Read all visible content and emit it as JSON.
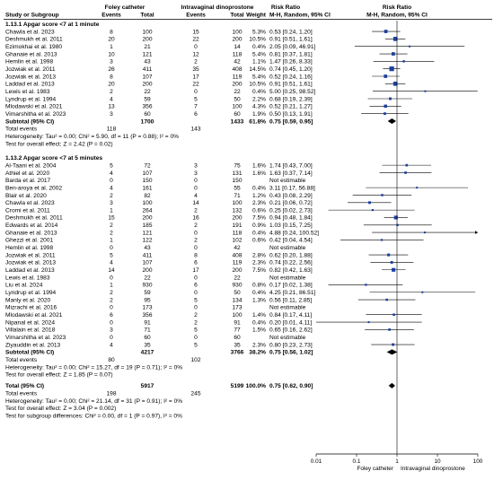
{
  "header": {
    "study": "Study or Subgroup",
    "group1": "Foley catheter",
    "group2": "Intravaginal dinoprostone",
    "events1": "Events",
    "total1": "Total",
    "events2": "Events",
    "total2": "Total",
    "weight": "Weight",
    "rr_title": "Risk Ratio",
    "rr_method": "M-H, Random, 95% CI",
    "plot_title": "Risk Ratio",
    "plot_method": "M-H, Random, 95% CI"
  },
  "colors": {
    "ci_marker": "#1a3fa0",
    "diamond": "#000000",
    "line": "#000000"
  },
  "chart_data": {
    "type": "forest",
    "x_scale": "log",
    "xlim": [
      0.01,
      100
    ],
    "x_ticks": [
      "0.01",
      "0.1",
      "1",
      "10",
      "100"
    ],
    "favours_left": "Foley catheter",
    "favours_right": "Intravaginal dinoprostone",
    "subgroups": [
      {
        "title": "1.13.1 Apgar score <7 at 1 minute",
        "studies": [
          {
            "name": "Chawla et al. 2023",
            "e1": "8",
            "t1": "100",
            "e2": "15",
            "t2": "100",
            "weight": "5.3%",
            "ci_text": "0.53 [0.24, 1.20]",
            "rr": 0.53,
            "lo": 0.24,
            "hi": 1.2
          },
          {
            "name": "Deshmukh et al. 2011",
            "e1": "20",
            "t1": "200",
            "e2": "22",
            "t2": "200",
            "weight": "10.5%",
            "ci_text": "0.91 [0.51, 1.61]",
            "rr": 0.91,
            "lo": 0.51,
            "hi": 1.61
          },
          {
            "name": "Ezimokhai et al. 1980",
            "e1": "1",
            "t1": "21",
            "e2": "0",
            "t2": "14",
            "weight": "0.4%",
            "ci_text": "2.05 [0.09, 46.91]",
            "rr": 2.05,
            "lo": 0.09,
            "hi": 46.91
          },
          {
            "name": "Ghanaie et al. 2013",
            "e1": "10",
            "t1": "121",
            "e2": "12",
            "t2": "118",
            "weight": "5.4%",
            "ci_text": "0.81 [0.37, 1.81]",
            "rr": 0.81,
            "lo": 0.37,
            "hi": 1.81
          },
          {
            "name": "Hemlin et al. 1998",
            "e1": "3",
            "t1": "43",
            "e2": "2",
            "t2": "42",
            "weight": "1.1%",
            "ci_text": "1.47 [0.26, 8.33]",
            "rr": 1.47,
            "lo": 0.26,
            "hi": 8.33
          },
          {
            "name": "Jozwiak et al. 2011",
            "e1": "26",
            "t1": "411",
            "e2": "35",
            "t2": "408",
            "weight": "14.5%",
            "ci_text": "0.74 [0.45, 1.20]",
            "rr": 0.74,
            "lo": 0.45,
            "hi": 1.2
          },
          {
            "name": "Jozwiak et al. 2013",
            "e1": "8",
            "t1": "107",
            "e2": "17",
            "t2": "119",
            "weight": "5.4%",
            "ci_text": "0.52 [0.24, 1.16]",
            "rr": 0.52,
            "lo": 0.24,
            "hi": 1.16
          },
          {
            "name": "Laddad et al. 2013",
            "e1": "20",
            "t1": "200",
            "e2": "22",
            "t2": "200",
            "weight": "10.5%",
            "ci_text": "0.91 [0.51, 1.61]",
            "rr": 0.91,
            "lo": 0.51,
            "hi": 1.61
          },
          {
            "name": "Lewis et al. 1983",
            "e1": "2",
            "t1": "22",
            "e2": "0",
            "t2": "22",
            "weight": "0.4%",
            "ci_text": "5.00 [0.25, 98.52]",
            "rr": 5.0,
            "lo": 0.25,
            "hi": 98.52
          },
          {
            "name": "Lyndrup et al. 1994",
            "e1": "4",
            "t1": "59",
            "e2": "5",
            "t2": "50",
            "weight": "2.2%",
            "ci_text": "0.68 [0.19, 2.39]",
            "rr": 0.68,
            "lo": 0.19,
            "hi": 2.39
          },
          {
            "name": "Mlodawski et al. 2021",
            "e1": "13",
            "t1": "356",
            "e2": "7",
            "t2": "100",
            "weight": "4.3%",
            "ci_text": "0.52 [0.21, 1.27]",
            "rr": 0.52,
            "lo": 0.21,
            "hi": 1.27
          },
          {
            "name": "Vimarshitha et al. 2023",
            "e1": "3",
            "t1": "60",
            "e2": "6",
            "t2": "60",
            "weight": "1.9%",
            "ci_text": "0.50 [0.13, 1.91]",
            "rr": 0.5,
            "lo": 0.13,
            "hi": 1.91
          }
        ],
        "subtotal": {
          "label": "Subtotal (95% CI)",
          "t1": "1700",
          "t2": "1433",
          "weight": "61.8%",
          "ci_text": "0.75 [0.59, 0.95]",
          "rr": 0.75,
          "lo": 0.59,
          "hi": 0.95
        },
        "total_events": {
          "label": "Total events",
          "e1": "118",
          "e2": "143"
        },
        "heterogeneity": "Heterogeneity: Tau² = 0.00; Chi² = 5.90, df = 11 (P = 0.88); I² = 0%",
        "overall_test": "Test for overall effect: Z = 2.42 (P = 0.02)"
      },
      {
        "title": "1.13.2 Apgar score <7 at 5 minutes",
        "studies": [
          {
            "name": "Al-Taani et al. 2004",
            "e1": "5",
            "t1": "72",
            "e2": "3",
            "t2": "75",
            "weight": "1.6%",
            "ci_text": "1.74 [0.43, 7.00]",
            "rr": 1.74,
            "lo": 0.43,
            "hi": 7.0
          },
          {
            "name": "Athiel et al. 2020",
            "e1": "4",
            "t1": "107",
            "e2": "3",
            "t2": "131",
            "weight": "1.6%",
            "ci_text": "1.63 [0.37, 7.14]",
            "rr": 1.63,
            "lo": 0.37,
            "hi": 7.14
          },
          {
            "name": "Barda et al. 2017",
            "e1": "0",
            "t1": "150",
            "e2": "0",
            "t2": "150",
            "weight": "",
            "ci_text": "Not estimable"
          },
          {
            "name": "Ben-aroya et al. 2002",
            "e1": "4",
            "t1": "161",
            "e2": "0",
            "t2": "55",
            "weight": "0.4%",
            "ci_text": "3.11 [0.17, 56.88]",
            "rr": 3.11,
            "lo": 0.17,
            "hi": 56.88
          },
          {
            "name": "Blair et al. 2020",
            "e1": "2",
            "t1": "82",
            "e2": "4",
            "t2": "71",
            "weight": "1.2%",
            "ci_text": "0.43 [0.08, 2.29]",
            "rr": 0.43,
            "lo": 0.08,
            "hi": 2.29
          },
          {
            "name": "Chawla et al. 2023",
            "e1": "3",
            "t1": "100",
            "e2": "14",
            "t2": "100",
            "weight": "2.3%",
            "ci_text": "0.21 [0.06, 0.72]",
            "rr": 0.21,
            "lo": 0.06,
            "hi": 0.72
          },
          {
            "name": "Cromi et al. 2011",
            "e1": "1",
            "t1": "264",
            "e2": "2",
            "t2": "132",
            "weight": "0.6%",
            "ci_text": "0.25 [0.02, 2.73]",
            "rr": 0.25,
            "lo": 0.02,
            "hi": 2.73
          },
          {
            "name": "Deshmukh et al. 2011",
            "e1": "15",
            "t1": "200",
            "e2": "16",
            "t2": "200",
            "weight": "7.5%",
            "ci_text": "0.94 [0.48, 1.84]",
            "rr": 0.94,
            "lo": 0.48,
            "hi": 1.84
          },
          {
            "name": "Edwards et al. 2014",
            "e1": "2",
            "t1": "185",
            "e2": "2",
            "t2": "191",
            "weight": "0.9%",
            "ci_text": "1.03 [0.15, 7.25]",
            "rr": 1.03,
            "lo": 0.15,
            "hi": 7.25
          },
          {
            "name": "Ghanaie et al. 2013",
            "e1": "2",
            "t1": "121",
            "e2": "0",
            "t2": "118",
            "weight": "0.4%",
            "ci_text": "4.88 [0.24, 100.52]",
            "rr": 4.88,
            "lo": 0.24,
            "hi": 100.52
          },
          {
            "name": "Ghezzi et al. 2001",
            "e1": "1",
            "t1": "122",
            "e2": "2",
            "t2": "102",
            "weight": "0.6%",
            "ci_text": "0.42 [0.04, 4.54]",
            "rr": 0.42,
            "lo": 0.04,
            "hi": 4.54
          },
          {
            "name": "Hemlin et al. 1998",
            "e1": "0",
            "t1": "43",
            "e2": "0",
            "t2": "42",
            "weight": "",
            "ci_text": "Not estimable"
          },
          {
            "name": "Jozwiak et al. 2011",
            "e1": "5",
            "t1": "411",
            "e2": "8",
            "t2": "408",
            "weight": "2.8%",
            "ci_text": "0.62 [0.20, 1.88]",
            "rr": 0.62,
            "lo": 0.2,
            "hi": 1.88
          },
          {
            "name": "Jozwiak et al. 2013",
            "e1": "4",
            "t1": "107",
            "e2": "6",
            "t2": "119",
            "weight": "2.3%",
            "ci_text": "0.74 [0.22, 2.56]",
            "rr": 0.74,
            "lo": 0.22,
            "hi": 2.56
          },
          {
            "name": "Laddad et al. 2013",
            "e1": "14",
            "t1": "200",
            "e2": "17",
            "t2": "200",
            "weight": "7.5%",
            "ci_text": "0.82 [0.42, 1.63]",
            "rr": 0.82,
            "lo": 0.42,
            "hi": 1.63
          },
          {
            "name": "Lewis et al. 1983",
            "e1": "0",
            "t1": "22",
            "e2": "0",
            "t2": "22",
            "weight": "",
            "ci_text": "Not estimable"
          },
          {
            "name": "Liu et al. 2024",
            "e1": "1",
            "t1": "930",
            "e2": "6",
            "t2": "930",
            "weight": "0.8%",
            "ci_text": "0.17 [0.02, 1.38]",
            "rr": 0.17,
            "lo": 0.02,
            "hi": 1.38
          },
          {
            "name": "Lyndrup et al. 1994",
            "e1": "2",
            "t1": "59",
            "e2": "0",
            "t2": "50",
            "weight": "0.4%",
            "ci_text": "4.25 [0.21, 86.51]",
            "rr": 4.25,
            "lo": 0.21,
            "hi": 86.51
          },
          {
            "name": "Manly et al. 2020",
            "e1": "2",
            "t1": "95",
            "e2": "5",
            "t2": "134",
            "weight": "1.3%",
            "ci_text": "0.56 [0.11, 2.85]",
            "rr": 0.56,
            "lo": 0.11,
            "hi": 2.85
          },
          {
            "name": "Mizrachi et al. 2016",
            "e1": "0",
            "t1": "173",
            "e2": "0",
            "t2": "173",
            "weight": "",
            "ci_text": "Not estimable"
          },
          {
            "name": "Mlodawski et al. 2021",
            "e1": "6",
            "t1": "356",
            "e2": "2",
            "t2": "100",
            "weight": "1.4%",
            "ci_text": "0.84 [0.17, 4.11]",
            "rr": 0.84,
            "lo": 0.17,
            "hi": 4.11
          },
          {
            "name": "Nipanal et al. 2024",
            "e1": "0",
            "t1": "91",
            "e2": "2",
            "t2": "91",
            "weight": "0.4%",
            "ci_text": "0.20 [0.01, 4.11]",
            "rr": 0.2,
            "lo": 0.01,
            "hi": 4.11
          },
          {
            "name": "Villalain et al. 2018",
            "e1": "3",
            "t1": "71",
            "e2": "5",
            "t2": "77",
            "weight": "1.5%",
            "ci_text": "0.65 [0.16, 2.62]",
            "rr": 0.65,
            "lo": 0.16,
            "hi": 2.62
          },
          {
            "name": "Vimarshitha et al. 2023",
            "e1": "0",
            "t1": "60",
            "e2": "0",
            "t2": "60",
            "weight": "",
            "ci_text": "Not estimable"
          },
          {
            "name": "Ziyauddin et al. 2013",
            "e1": "4",
            "t1": "35",
            "e2": "5",
            "t2": "35",
            "weight": "2.3%",
            "ci_text": "0.80 [0.23, 2.73]",
            "rr": 0.8,
            "lo": 0.23,
            "hi": 2.73
          }
        ],
        "subtotal": {
          "label": "Subtotal (95% CI)",
          "t1": "4217",
          "t2": "3766",
          "weight": "38.2%",
          "ci_text": "0.75 [0.56, 1.02]",
          "rr": 0.75,
          "lo": 0.56,
          "hi": 1.02
        },
        "total_events": {
          "label": "Total events",
          "e1": "80",
          "e2": "102"
        },
        "heterogeneity": "Heterogeneity: Tau² = 0.00; Chi² = 15.27, df = 19 (P = 0.71); I² = 0%",
        "overall_test": "Test for overall effect: Z = 1.85 (P = 0.07)"
      }
    ],
    "overall": {
      "label": "Total (95% CI)",
      "t1": "5917",
      "t2": "5199",
      "weight": "100.0%",
      "ci_text": "0.75 [0.62, 0.90]",
      "rr": 0.75,
      "lo": 0.62,
      "hi": 0.9
    },
    "overall_events": {
      "label": "Total events",
      "e1": "198",
      "e2": "245"
    },
    "overall_heterogeneity": "Heterogeneity: Tau² = 0.00; Chi² = 21.14, df = 31 (P = 0.91); I² = 0%",
    "overall_test": "Test for overall effect: Z = 3.04 (P = 0.002)",
    "subgroup_test": "Test for subgroup differences: Chi² = 0.00, df = 1 (P = 0.97), I² = 0%"
  }
}
